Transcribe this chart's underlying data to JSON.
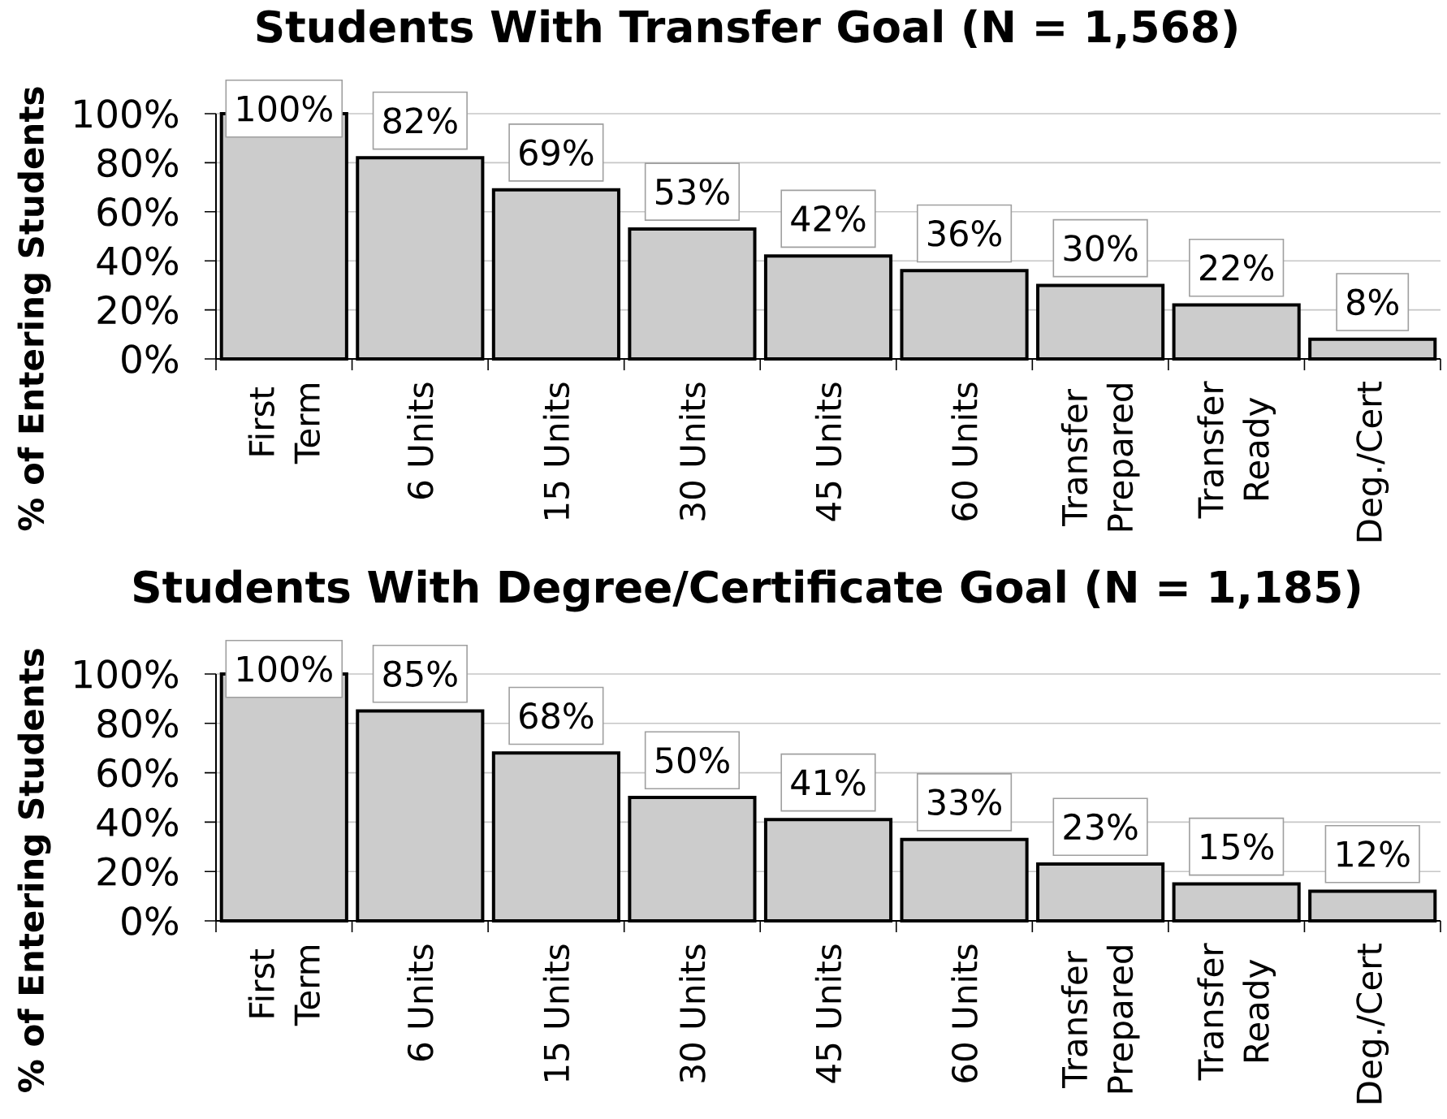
{
  "chart_data": [
    {
      "type": "bar",
      "title": "Students With Transfer Goal (N = 1,568)",
      "ylabel": "% of Entering Students",
      "categories": [
        "First Term",
        "6 Units",
        "15 Units",
        "30 Units",
        "45 Units",
        "60 Units",
        "Transfer Prepared",
        "Transfer Ready",
        "Deg./Cert"
      ],
      "values": [
        100,
        82,
        69,
        53,
        42,
        36,
        30,
        22,
        8
      ],
      "value_labels": [
        "100%",
        "82%",
        "69%",
        "53%",
        "42%",
        "36%",
        "30%",
        "22%",
        "8%"
      ],
      "color": "#cccccc",
      "ylim": [
        0,
        100
      ],
      "yticks": [
        {
          "value": 0,
          "label": "0%"
        },
        {
          "value": 20,
          "label": "20%"
        },
        {
          "value": 40,
          "label": "40%"
        },
        {
          "value": 60,
          "label": "60%"
        },
        {
          "value": 80,
          "label": "80%"
        },
        {
          "value": 100,
          "label": "100%"
        }
      ],
      "grid": "y"
    },
    {
      "type": "bar",
      "title": "Students With Degree/Certificate Goal (N = 1,185)",
      "ylabel": "% of Entering Students",
      "categories": [
        "First Term",
        "6 Units",
        "15 Units",
        "30 Units",
        "45 Units",
        "60 Units",
        "Transfer Prepared",
        "Transfer Ready",
        "Deg./Cert"
      ],
      "values": [
        100,
        85,
        68,
        50,
        41,
        33,
        23,
        15,
        12
      ],
      "value_labels": [
        "100%",
        "85%",
        "68%",
        "50%",
        "41%",
        "33%",
        "23%",
        "15%",
        "12%"
      ],
      "color": "#cccccc",
      "ylim": [
        0,
        100
      ],
      "yticks": [
        {
          "value": 0,
          "label": "0%"
        },
        {
          "value": 20,
          "label": "20%"
        },
        {
          "value": 40,
          "label": "40%"
        },
        {
          "value": 60,
          "label": "60%"
        },
        {
          "value": 80,
          "label": "80%"
        },
        {
          "value": 100,
          "label": "100%"
        }
      ],
      "grid": "y"
    }
  ]
}
